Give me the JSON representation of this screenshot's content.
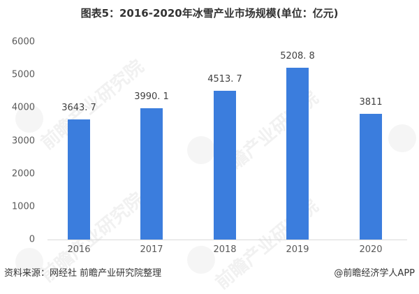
{
  "title": "图表5：2016-2020年冰雪产业市场规模(单位：亿元)",
  "chart_data": {
    "type": "bar",
    "title": "图表5：2016-2020年冰雪产业市场规模(单位：亿元)",
    "categories": [
      "2016",
      "2017",
      "2018",
      "2019",
      "2020"
    ],
    "values": [
      3643.7,
      3990.1,
      4513.7,
      5208.8,
      3811
    ],
    "value_labels": [
      "3643. 7",
      "3990. 1",
      "4513. 7",
      "5208. 8",
      "3811"
    ],
    "xlabel": "",
    "ylabel": "",
    "ylim": [
      0,
      6000
    ],
    "yticks": [
      "6000",
      "5000",
      "4000",
      "3000",
      "2000",
      "1000",
      "0"
    ],
    "grid": false,
    "legend": null,
    "bar_color": "#3b7ddd"
  },
  "footer": {
    "source": "资料来源：网经社 前瞻产业研究院整理",
    "credit": "@前瞻经济学人APP"
  },
  "watermark": "前瞻产业研究院"
}
